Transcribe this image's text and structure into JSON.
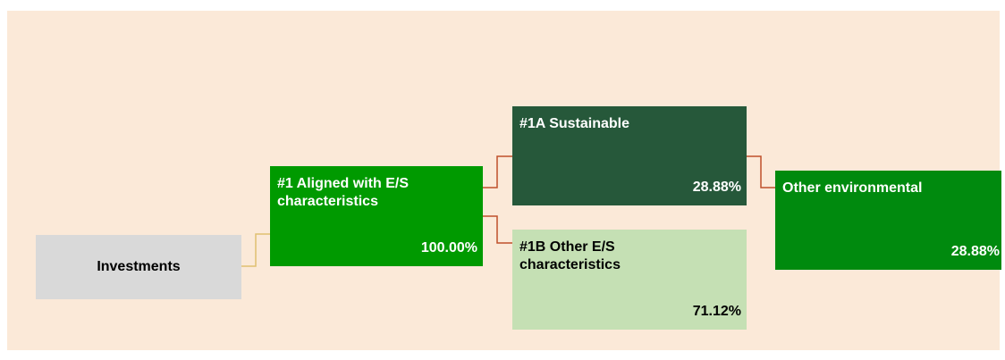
{
  "nodes": [
    {
      "label": "Investments"
    },
    {
      "label": "#1 Aligned with E/S characteristics",
      "value": "100.00%"
    },
    {
      "label": "#1A Sustainable",
      "value": "28.88%"
    },
    {
      "label": "#1B Other E/S characteristics",
      "value": "71.12%"
    },
    {
      "label": "Other environmental",
      "value": "28.88%"
    }
  ]
}
